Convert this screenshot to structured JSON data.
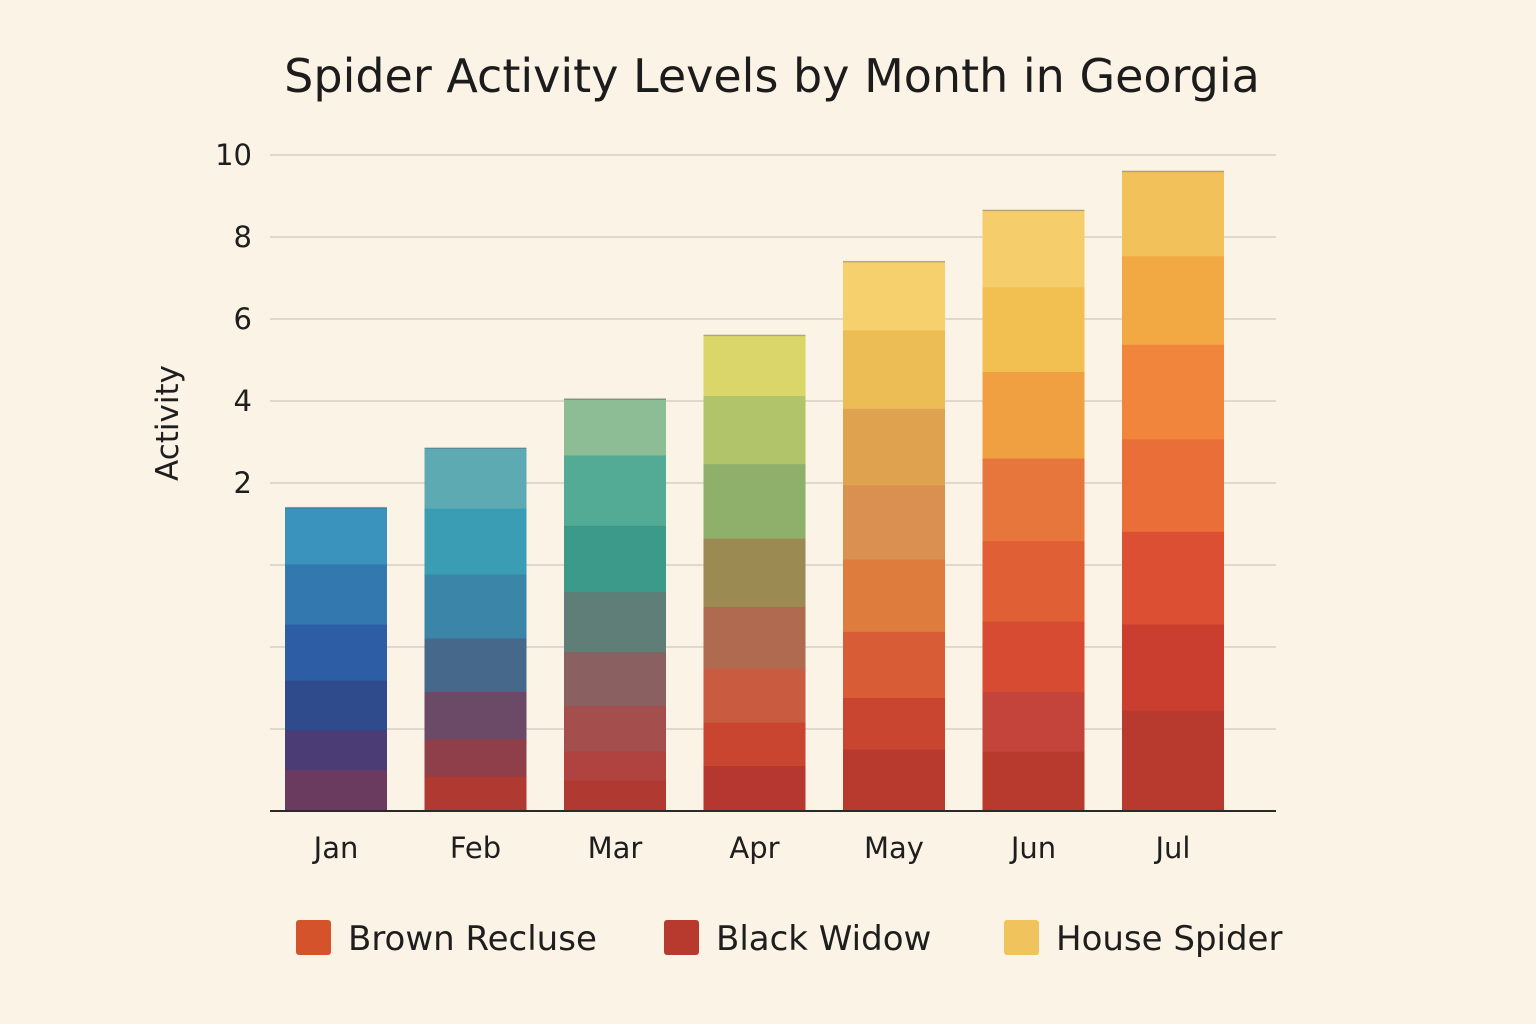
{
  "chart_data": {
    "type": "bar",
    "stacked": true,
    "title": "Spider Activity Levels by Month in Georgia",
    "xlabel": "",
    "ylabel": "Activity",
    "ylim": [
      -6,
      10
    ],
    "y_tick_labels": [
      "2",
      "4",
      "6",
      "8",
      "10"
    ],
    "y_tick_values": [
      2,
      4,
      6,
      8,
      10
    ],
    "grid": true,
    "legend_position": "bottom",
    "categories": [
      "Jan",
      "Feb",
      "Mar",
      "Apr",
      "May",
      "Jun",
      "Jul"
    ],
    "totals": [
      1.4,
      2.85,
      4.05,
      5.6,
      7.4,
      8.65,
      9.6
    ],
    "legend": [
      {
        "label": "Brown Recluse",
        "color": "#d4532a"
      },
      {
        "label": "Black Widow",
        "color": "#b8392e"
      },
      {
        "label": "House Spider",
        "color": "#f1c35c"
      }
    ],
    "bars": [
      {
        "category": "Jan",
        "segments": [
          {
            "value": 1.0,
            "color": "#6a3b5e"
          },
          {
            "value": 0.95,
            "color": "#4b3c75"
          },
          {
            "value": 1.2,
            "color": "#2f4b8c"
          },
          {
            "value": 1.35,
            "color": "#2d5ea5"
          },
          {
            "value": 1.45,
            "color": "#3379b0"
          },
          {
            "value": 1.35,
            "color": "#3a93bc"
          }
        ]
      },
      {
        "category": "Feb",
        "segments": [
          {
            "value": 0.85,
            "color": "#b03a32"
          },
          {
            "value": 0.9,
            "color": "#8e3f4a"
          },
          {
            "value": 1.15,
            "color": "#6a4a66"
          },
          {
            "value": 1.3,
            "color": "#46688a"
          },
          {
            "value": 1.55,
            "color": "#3b85a8"
          },
          {
            "value": 1.6,
            "color": "#3b9db4"
          },
          {
            "value": 1.45,
            "color": "#5daab3"
          }
        ]
      },
      {
        "category": "Mar",
        "segments": [
          {
            "value": 0.75,
            "color": "#b03a32"
          },
          {
            "value": 0.7,
            "color": "#b04240"
          },
          {
            "value": 1.1,
            "color": "#a44f4d"
          },
          {
            "value": 1.3,
            "color": "#8a6160"
          },
          {
            "value": 1.45,
            "color": "#5f7e77"
          },
          {
            "value": 1.6,
            "color": "#3b9a8a"
          },
          {
            "value": 1.7,
            "color": "#53ab96"
          },
          {
            "value": 1.35,
            "color": "#8cbd94"
          }
        ]
      },
      {
        "category": "Apr",
        "segments": [
          {
            "value": 1.1,
            "color": "#b5372f"
          },
          {
            "value": 1.05,
            "color": "#c9452f"
          },
          {
            "value": 1.3,
            "color": "#c85b40"
          },
          {
            "value": 1.5,
            "color": "#b06a50"
          },
          {
            "value": 1.65,
            "color": "#9c8a53"
          },
          {
            "value": 1.8,
            "color": "#8eb06a"
          },
          {
            "value": 1.65,
            "color": "#b1c46a"
          },
          {
            "value": 1.45,
            "color": "#dbd66a"
          }
        ]
      },
      {
        "category": "May",
        "segments": [
          {
            "value": 1.5,
            "color": "#b8392e"
          },
          {
            "value": 1.25,
            "color": "#c9452f"
          },
          {
            "value": 1.6,
            "color": "#d85c35"
          },
          {
            "value": 1.75,
            "color": "#dd7c3d"
          },
          {
            "value": 1.8,
            "color": "#d99050"
          },
          {
            "value": 1.85,
            "color": "#dfa34f"
          },
          {
            "value": 1.9,
            "color": "#ecbd55"
          },
          {
            "value": 1.65,
            "color": "#f5d06c"
          }
        ]
      },
      {
        "category": "Jun",
        "segments": [
          {
            "value": 1.45,
            "color": "#b8392e"
          },
          {
            "value": 1.45,
            "color": "#c4433a"
          },
          {
            "value": 1.7,
            "color": "#d74b32"
          },
          {
            "value": 1.95,
            "color": "#e05f34"
          },
          {
            "value": 2.0,
            "color": "#e6763b"
          },
          {
            "value": 2.1,
            "color": "#f0a041"
          },
          {
            "value": 2.05,
            "color": "#f1c051"
          },
          {
            "value": 1.85,
            "color": "#f6cd6b"
          }
        ]
      },
      {
        "category": "Jul",
        "segments": [
          {
            "value": 2.45,
            "color": "#b8392e"
          },
          {
            "value": 2.1,
            "color": "#ca3e30"
          },
          {
            "value": 2.25,
            "color": "#dc4f33"
          },
          {
            "value": 2.25,
            "color": "#e96e38"
          },
          {
            "value": 2.3,
            "color": "#f0853b"
          },
          {
            "value": 2.15,
            "color": "#f2a843"
          },
          {
            "value": 2.05,
            "color": "#f3c159"
          }
        ]
      }
    ]
  }
}
